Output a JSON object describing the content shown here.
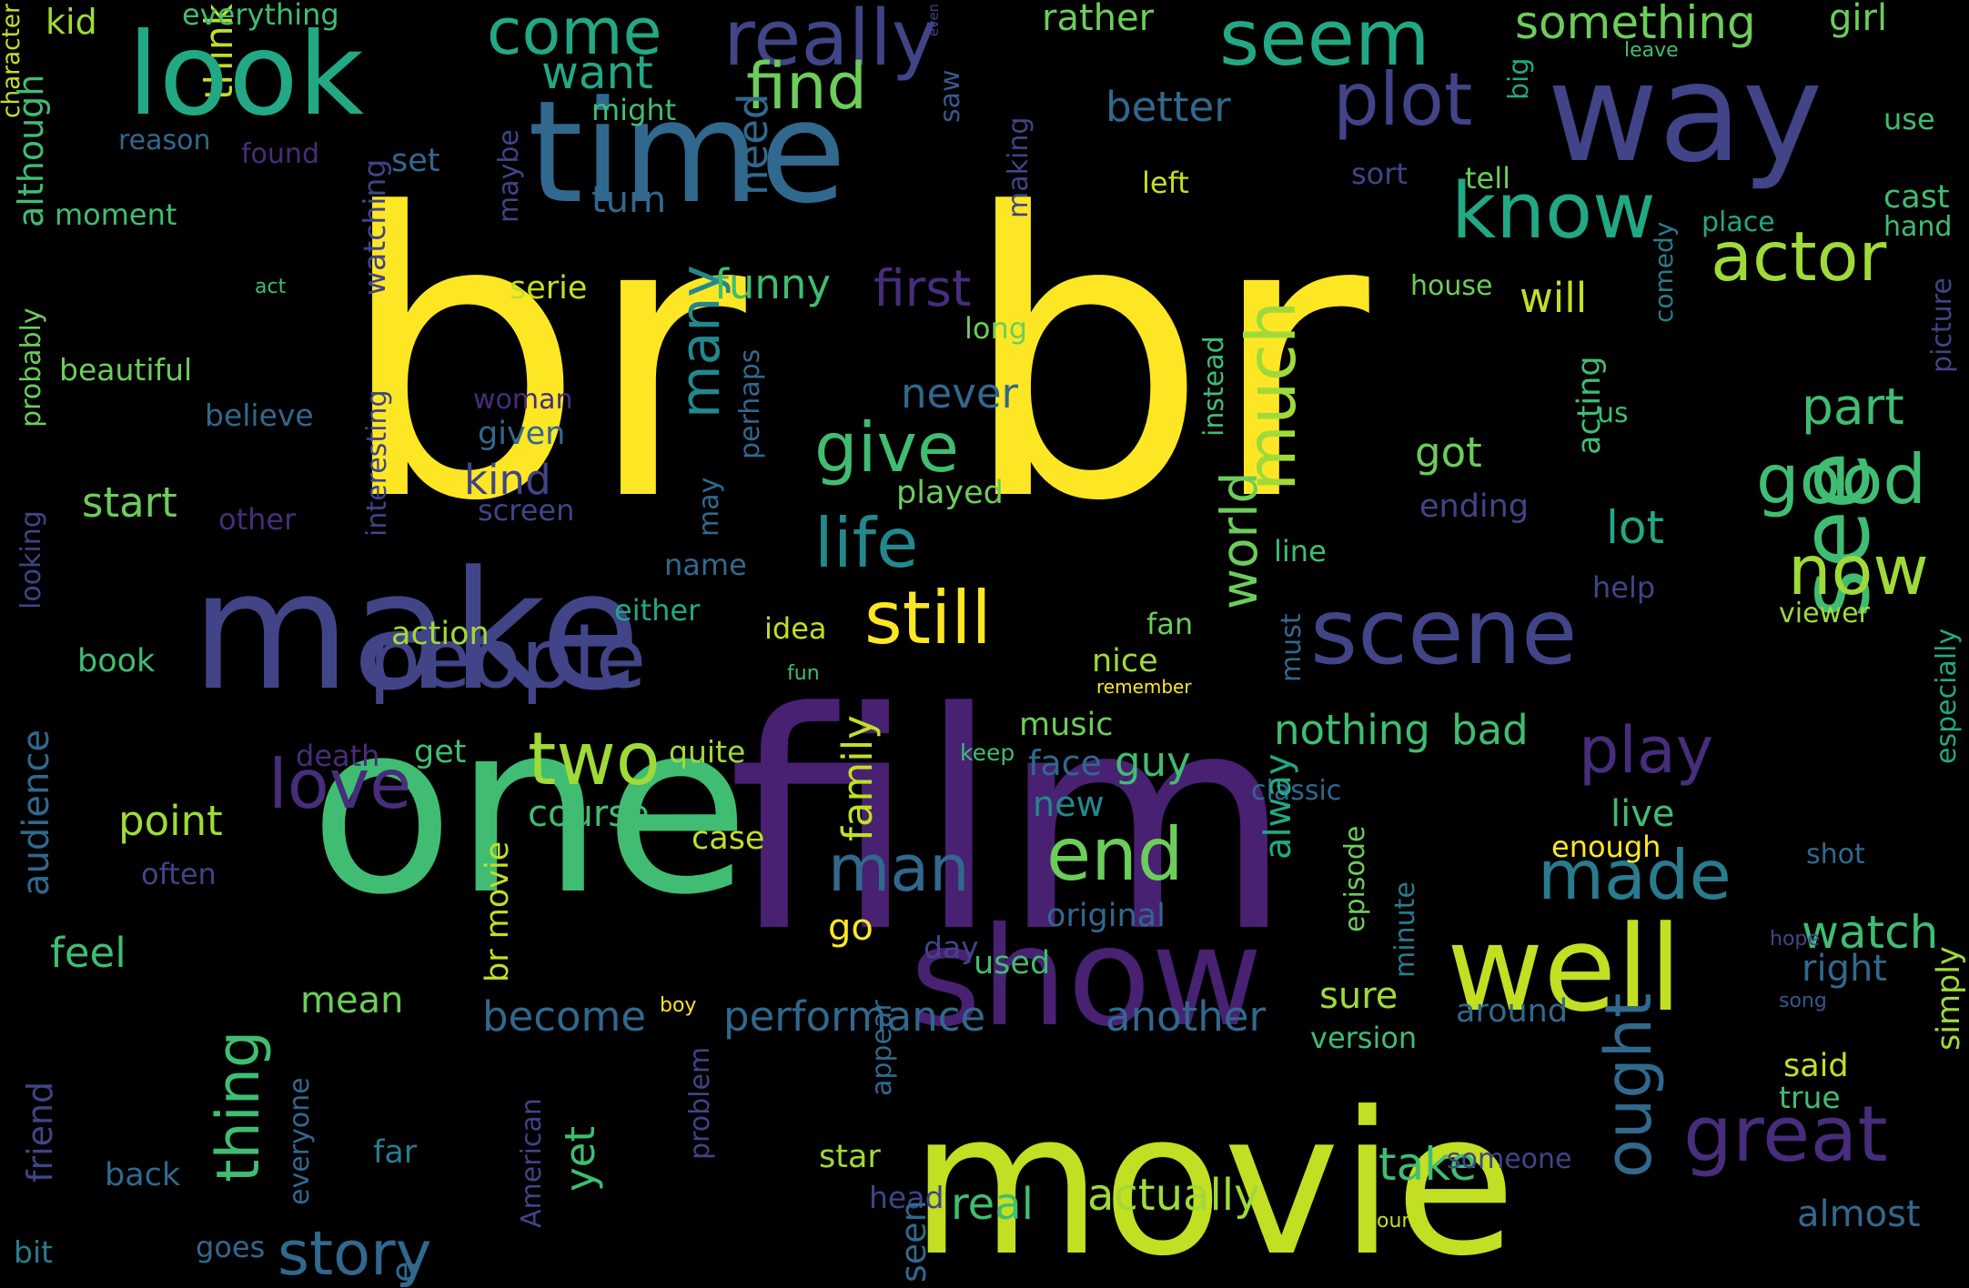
{
  "palette": {
    "yellow": "#fde725",
    "yellowgreen": "#c2df23",
    "lime": "#a0da39",
    "green": "#6ccd5a",
    "seagreen": "#40bd72",
    "teal": "#22a884",
    "tealblue": "#1f9a8a",
    "cyan": "#23888e",
    "blueteal": "#297b8e",
    "blue": "#31688e",
    "slate": "#39568c",
    "indigo": "#414487",
    "violet": "#472d7b",
    "purple": "#482173",
    "darkpurple": "#440154"
  },
  "words": [
    {
      "text": "br",
      "c": "yellow"
    },
    {
      "text": "br",
      "c": "yellow"
    },
    {
      "text": "film",
      "c": "purple"
    },
    {
      "text": "even",
      "c": "indigo"
    },
    {
      "text": "character",
      "c": "yellowgreen"
    },
    {
      "text": "one",
      "c": "seagreen"
    },
    {
      "text": "movie",
      "c": "yellowgreen"
    },
    {
      "text": "make",
      "c": "indigo"
    },
    {
      "text": "time",
      "c": "blue"
    },
    {
      "text": "show",
      "c": "purple"
    },
    {
      "text": "well",
      "c": "yellowgreen"
    },
    {
      "text": "way",
      "c": "indigo"
    },
    {
      "text": "think",
      "c": "yellowgreen"
    },
    {
      "text": "look",
      "c": "teal"
    },
    {
      "text": "story",
      "c": "blue"
    },
    {
      "text": "scene",
      "c": "indigo"
    },
    {
      "text": "see",
      "c": "seagreen"
    },
    {
      "text": "much",
      "c": "lime"
    },
    {
      "text": "people",
      "c": "indigo"
    },
    {
      "text": "really",
      "c": "indigo"
    },
    {
      "text": "seem",
      "c": "teal"
    },
    {
      "text": "know",
      "c": "teal"
    },
    {
      "text": "plot",
      "c": "indigo"
    },
    {
      "text": "come",
      "c": "teal"
    },
    {
      "text": "find",
      "c": "green"
    },
    {
      "text": "actor",
      "c": "lime"
    },
    {
      "text": "good",
      "c": "seagreen"
    },
    {
      "text": "give",
      "c": "seagreen"
    },
    {
      "text": "life",
      "c": "cyan"
    },
    {
      "text": "still",
      "c": "yellow"
    },
    {
      "text": "now",
      "c": "lime"
    },
    {
      "text": "end",
      "c": "green"
    },
    {
      "text": "made",
      "c": "blueteal"
    },
    {
      "text": "man",
      "c": "blue"
    },
    {
      "text": "play",
      "c": "violet"
    },
    {
      "text": "great",
      "c": "violet"
    },
    {
      "text": "love",
      "c": "violet"
    },
    {
      "text": "two",
      "c": "lime"
    },
    {
      "text": "many",
      "c": "cyan"
    },
    {
      "text": "thing",
      "c": "seagreen"
    },
    {
      "text": "world",
      "c": "green"
    },
    {
      "text": "something",
      "c": "green"
    },
    {
      "text": "want",
      "c": "teal"
    },
    {
      "text": "watch",
      "c": "seagreen"
    },
    {
      "text": "take",
      "c": "seagreen"
    },
    {
      "text": "part",
      "c": "seagreen"
    },
    {
      "text": "lot",
      "c": "teal"
    },
    {
      "text": "better",
      "c": "blue"
    },
    {
      "text": "rather",
      "c": "green"
    },
    {
      "text": "girl",
      "c": "green"
    },
    {
      "text": "everything",
      "c": "seagreen"
    },
    {
      "text": "kid",
      "c": "lime"
    },
    {
      "text": "although",
      "c": "seagreen"
    },
    {
      "text": "might",
      "c": "seagreen"
    },
    {
      "text": "reason",
      "c": "blue"
    },
    {
      "text": "found",
      "c": "violet"
    },
    {
      "text": "set",
      "c": "blue"
    },
    {
      "text": "moment",
      "c": "seagreen"
    },
    {
      "text": "turn",
      "c": "blue"
    },
    {
      "text": "need",
      "c": "blue"
    },
    {
      "text": "saw",
      "c": "slate"
    },
    {
      "text": "big",
      "c": "teal"
    },
    {
      "text": "leave",
      "c": "seagreen"
    },
    {
      "text": "use",
      "c": "seagreen"
    },
    {
      "text": "making",
      "c": "indigo"
    },
    {
      "text": "maybe",
      "c": "indigo"
    },
    {
      "text": "left",
      "c": "yellowgreen"
    },
    {
      "text": "sort",
      "c": "indigo"
    },
    {
      "text": "tell",
      "c": "green"
    },
    {
      "text": "cast",
      "c": "seagreen"
    },
    {
      "text": "place",
      "c": "teal"
    },
    {
      "text": "hand",
      "c": "seagreen"
    },
    {
      "text": "watching",
      "c": "indigo"
    },
    {
      "text": "act",
      "c": "seagreen"
    },
    {
      "text": "serie",
      "c": "yellowgreen"
    },
    {
      "text": "funny",
      "c": "seagreen"
    },
    {
      "text": "first",
      "c": "violet"
    },
    {
      "text": "will",
      "c": "yellowgreen"
    },
    {
      "text": "house",
      "c": "green"
    },
    {
      "text": "comedy",
      "c": "blueteal"
    },
    {
      "text": "probably",
      "c": "green"
    },
    {
      "text": "beautiful",
      "c": "green"
    },
    {
      "text": "long",
      "c": "green"
    },
    {
      "text": "acting",
      "c": "seagreen"
    },
    {
      "text": "picture",
      "c": "indigo"
    },
    {
      "text": "instead",
      "c": "seagreen"
    },
    {
      "text": "believe",
      "c": "blue"
    },
    {
      "text": "woman",
      "c": "violet"
    },
    {
      "text": "perhaps",
      "c": "blue"
    },
    {
      "text": "never",
      "c": "blue"
    },
    {
      "text": "us",
      "c": "seagreen"
    },
    {
      "text": "given",
      "c": "blue"
    },
    {
      "text": "got",
      "c": "green"
    },
    {
      "text": "interesting",
      "c": "indigo"
    },
    {
      "text": "kind",
      "c": "indigo"
    },
    {
      "text": "start",
      "c": "green"
    },
    {
      "text": "screen",
      "c": "indigo"
    },
    {
      "text": "other",
      "c": "violet"
    },
    {
      "text": "played",
      "c": "green"
    },
    {
      "text": "ending",
      "c": "indigo"
    },
    {
      "text": "looking",
      "c": "indigo"
    },
    {
      "text": "may",
      "c": "blue"
    },
    {
      "text": "name",
      "c": "blue"
    },
    {
      "text": "line",
      "c": "seagreen"
    },
    {
      "text": "help",
      "c": "indigo"
    },
    {
      "text": "either",
      "c": "teal"
    },
    {
      "text": "viewer",
      "c": "lime"
    },
    {
      "text": "action",
      "c": "lime"
    },
    {
      "text": "idea",
      "c": "yellowgreen"
    },
    {
      "text": "fan",
      "c": "green"
    },
    {
      "text": "must",
      "c": "blue"
    },
    {
      "text": "book",
      "c": "seagreen"
    },
    {
      "text": "fun",
      "c": "seagreen"
    },
    {
      "text": "nice",
      "c": "lime"
    },
    {
      "text": "remember",
      "c": "yellow"
    },
    {
      "text": "especially",
      "c": "teal"
    },
    {
      "text": "audience",
      "c": "blue"
    },
    {
      "text": "death",
      "c": "violet"
    },
    {
      "text": "get",
      "c": "seagreen"
    },
    {
      "text": "quite",
      "c": "lime"
    },
    {
      "text": "keep",
      "c": "seagreen"
    },
    {
      "text": "music",
      "c": "green"
    },
    {
      "text": "nothing",
      "c": "seagreen"
    },
    {
      "text": "bad",
      "c": "seagreen"
    },
    {
      "text": "family",
      "c": "yellowgreen"
    },
    {
      "text": "face",
      "c": "blue"
    },
    {
      "text": "guy",
      "c": "seagreen"
    },
    {
      "text": "classic",
      "c": "blue"
    },
    {
      "text": "point",
      "c": "lime"
    },
    {
      "text": "course",
      "c": "seagreen"
    },
    {
      "text": "new",
      "c": "cyan"
    },
    {
      "text": "alway",
      "c": "teal"
    },
    {
      "text": "live",
      "c": "seagreen"
    },
    {
      "text": "episode",
      "c": "green"
    },
    {
      "text": "case",
      "c": "yellowgreen"
    },
    {
      "text": "enough",
      "c": "yellow"
    },
    {
      "text": "often",
      "c": "indigo"
    },
    {
      "text": "shot",
      "c": "blue"
    },
    {
      "text": "go",
      "c": "yellow"
    },
    {
      "text": "original",
      "c": "blue"
    },
    {
      "text": "day",
      "c": "indigo"
    },
    {
      "text": "minute",
      "c": "blueteal"
    },
    {
      "text": "feel",
      "c": "seagreen"
    },
    {
      "text": "used",
      "c": "seagreen"
    },
    {
      "text": "hope",
      "c": "indigo"
    },
    {
      "text": "br movie",
      "c": "yellowgreen"
    },
    {
      "text": "right",
      "c": "blue"
    },
    {
      "text": "mean",
      "c": "green"
    },
    {
      "text": "become",
      "c": "blue"
    },
    {
      "text": "performance",
      "c": "blue"
    },
    {
      "text": "another",
      "c": "blue"
    },
    {
      "text": "sure",
      "c": "lime"
    },
    {
      "text": "around",
      "c": "blue"
    },
    {
      "text": "simply",
      "c": "lime"
    },
    {
      "text": "song",
      "c": "slate"
    },
    {
      "text": "boy",
      "c": "yellow"
    },
    {
      "text": "version",
      "c": "seagreen"
    },
    {
      "text": "appear",
      "c": "blue"
    },
    {
      "text": "said",
      "c": "yellowgreen"
    },
    {
      "text": "true",
      "c": "seagreen"
    },
    {
      "text": "friend",
      "c": "indigo"
    },
    {
      "text": "everyone",
      "c": "blue"
    },
    {
      "text": "problem",
      "c": "indigo"
    },
    {
      "text": "far",
      "c": "blueteal"
    },
    {
      "text": "yet",
      "c": "seagreen"
    },
    {
      "text": "star",
      "c": "lime"
    },
    {
      "text": "someone",
      "c": "indigo"
    },
    {
      "text": "ought",
      "c": "blue"
    },
    {
      "text": "back",
      "c": "blue"
    },
    {
      "text": "real",
      "c": "seagreen"
    },
    {
      "text": "actually",
      "c": "lime"
    },
    {
      "text": "almost",
      "c": "blue"
    },
    {
      "text": "American",
      "c": "indigo"
    },
    {
      "text": "head",
      "c": "indigo"
    },
    {
      "text": "young",
      "c": "yellowgreen"
    },
    {
      "text": "bit",
      "c": "blueteal"
    },
    {
      "text": "goes",
      "c": "blue"
    },
    {
      "text": "seen",
      "c": "blue"
    },
    {
      "text": "e",
      "c": "blue"
    }
  ]
}
